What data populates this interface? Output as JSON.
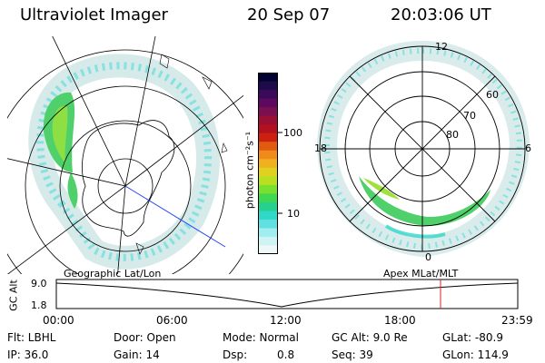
{
  "header": {
    "title": "Ultraviolet Imager",
    "date": "20 Sep 07",
    "time": "20:03:06 UT"
  },
  "left_panel": {
    "caption": "Geographic Lat/Lon"
  },
  "right_panel": {
    "caption": "Apex MLat/MLT",
    "mlt_labels": [
      "12",
      "18",
      "6",
      "0"
    ],
    "lat_labels": [
      "60",
      "70",
      "80"
    ]
  },
  "colorbar": {
    "label": "photon cm⁻²s⁻¹",
    "ticks": [
      "100",
      "10"
    ],
    "colors": [
      "#000033",
      "#1c0a4a",
      "#3b0a5a",
      "#5c0a60",
      "#7a1050",
      "#9a1035",
      "#b31020",
      "#cc2010",
      "#e05a10",
      "#f08a1a",
      "#f0b020",
      "#e0d020",
      "#b8e020",
      "#7ae030",
      "#40d850",
      "#28d090",
      "#30d8c8",
      "#60e0e0",
      "#a0eef0",
      "#d0f4f4",
      "#eef8f8"
    ]
  },
  "timeline": {
    "axis_label": "GC Alt",
    "y_ticks": [
      "9.0",
      "1.8"
    ],
    "x_ticks": [
      "00:00",
      "06:00",
      "12:00",
      "18:00",
      "23:59"
    ],
    "marker_color": "#dd2222"
  },
  "info": {
    "flt": "Flt: LBHL",
    "door": "Door: Open",
    "mode": "Mode: Normal",
    "gc_alt": "GC Alt: 9.0 Re",
    "glat": "GLat: -80.9",
    "ip": "IP: 36.0",
    "gain": "Gain: 14",
    "dsp_label": "Dsp:",
    "dsp_value": "0.8",
    "seq": "Seq: 39",
    "glon": "GLon: 114.9"
  }
}
